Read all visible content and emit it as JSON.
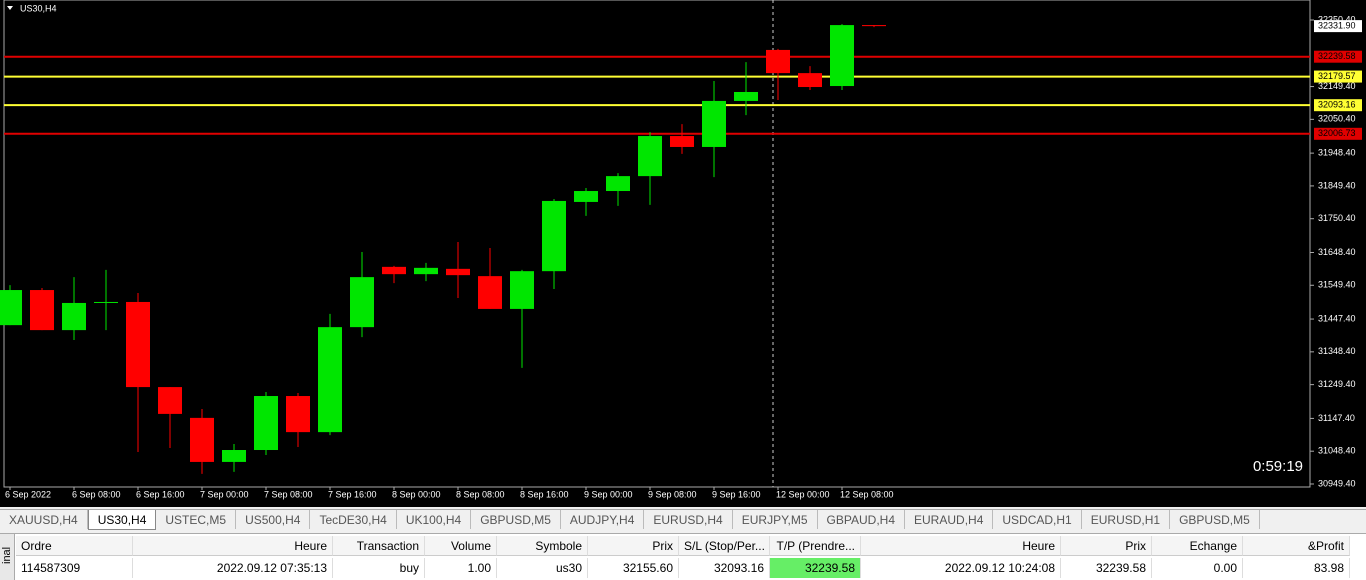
{
  "chart_data": {
    "type": "candlestick",
    "title": "US30,H4",
    "countdown": "0:59:19",
    "categories": [
      "6 Sep 2022",
      null,
      "6 Sep 08:00",
      null,
      "6 Sep 16:00",
      null,
      "7 Sep 00:00",
      null,
      "7 Sep 08:00",
      null,
      "7 Sep 16:00",
      null,
      "8 Sep 00:00",
      null,
      "8 Sep 08:00",
      null,
      "8 Sep 16:00",
      null,
      "9 Sep 00:00",
      null,
      "9 Sep 08:00",
      null,
      "9 Sep 16:00",
      null,
      "12 Sep 00:00",
      null,
      "12 Sep 08:00",
      null
    ],
    "open": [
      31429,
      31535,
      31414,
      31499,
      31499,
      31242,
      31149,
      31016,
      31052,
      31215,
      31106,
      31423,
      31605,
      31583,
      31599,
      31577,
      31478,
      31592,
      31801,
      31834,
      31879,
      32000,
      31967,
      32106,
      32260,
      32190,
      32151,
      32335
    ],
    "high": [
      31550,
      31541,
      31574,
      31596,
      31526,
      31242,
      31176,
      31070,
      31227,
      31224,
      31463,
      31650,
      31608,
      31617,
      31680,
      31662,
      31596,
      31810,
      31843,
      31888,
      32012,
      32036,
      32166,
      32223,
      32263,
      32211,
      32338,
      32335
    ],
    "low": [
      31429,
      31414,
      31384,
      31414,
      31046,
      31058,
      30980,
      30986,
      31037,
      31061,
      31097,
      31393,
      31556,
      31562,
      31511,
      31478,
      31300,
      31538,
      31759,
      31789,
      31792,
      31946,
      31876,
      32063,
      32109,
      32139,
      32139,
      32329
    ],
    "close": [
      31535,
      31414,
      31496,
      31499,
      31242,
      31161,
      31016,
      31052,
      31215,
      31106,
      31423,
      31574,
      31583,
      31602,
      31580,
      31478,
      31592,
      31804,
      31834,
      31879,
      32000,
      31967,
      32106,
      32133,
      32190,
      32148,
      32335,
      32331.9
    ],
    "up_color": "#00e600",
    "down_color": "#ff0000",
    "ylim": [
      30940.3,
      32401.7
    ],
    "yticks": [
      {
        "value": 32350.4,
        "label": "32350.40"
      },
      {
        "value": 32149.4,
        "label": "32149.40"
      },
      {
        "value": 32050.4,
        "label": "32050.40"
      },
      {
        "value": 31948.4,
        "label": "31948.40"
      },
      {
        "value": 31849.4,
        "label": "31849.40"
      },
      {
        "value": 31750.4,
        "label": "31750.40"
      },
      {
        "value": 31648.4,
        "label": "31648.40"
      },
      {
        "value": 31549.4,
        "label": "31549.40"
      },
      {
        "value": 31447.4,
        "label": "31447.40"
      },
      {
        "value": 31348.4,
        "label": "31348.40"
      },
      {
        "value": 31249.4,
        "label": "31249.40"
      },
      {
        "value": 31147.4,
        "label": "31147.40"
      },
      {
        "value": 31048.4,
        "label": "31048.40"
      },
      {
        "value": 30949.4,
        "label": "30949.40"
      }
    ],
    "levels": [
      {
        "value": 32239.58,
        "color": "#e00000"
      },
      {
        "value": 32179.57,
        "color": "#ffff33"
      },
      {
        "value": 32093.16,
        "color": "#ffff33"
      },
      {
        "value": 32006.73,
        "color": "#e00000"
      }
    ],
    "current_price": {
      "value": 32331.9,
      "label": "32331.90"
    }
  },
  "tabs": [
    "XAUUSD,H4",
    "US30,H4",
    "USTEC,M5",
    "US500,H4",
    "TecDE30,H4",
    "UK100,H4",
    "GBPUSD,M5",
    "AUDJPY,H4",
    "EURUSD,H4",
    "EURJPY,M5",
    "GBPAUD,H4",
    "EURAUD,H4",
    "USDCAD,H1",
    "EURUSD,H1",
    "GBPUSD,M5"
  ],
  "terminal": {
    "side_label": "inal",
    "headers": [
      "Ordre",
      "Heure",
      "Transaction",
      "Volume",
      "Symbole",
      "Prix",
      "S/L (Stop/Per...",
      "T/P (Prendre...",
      "Heure",
      "Prix",
      "Echange",
      "&Profit"
    ],
    "rows": [
      [
        "114587309",
        "2022.09.12 07:35:13",
        "buy",
        "1.00",
        "us30",
        "32155.60",
        "32093.16",
        "32239.58",
        "2022.09.12 10:24:08",
        "32239.58",
        "0.00",
        "83.98"
      ]
    ]
  }
}
